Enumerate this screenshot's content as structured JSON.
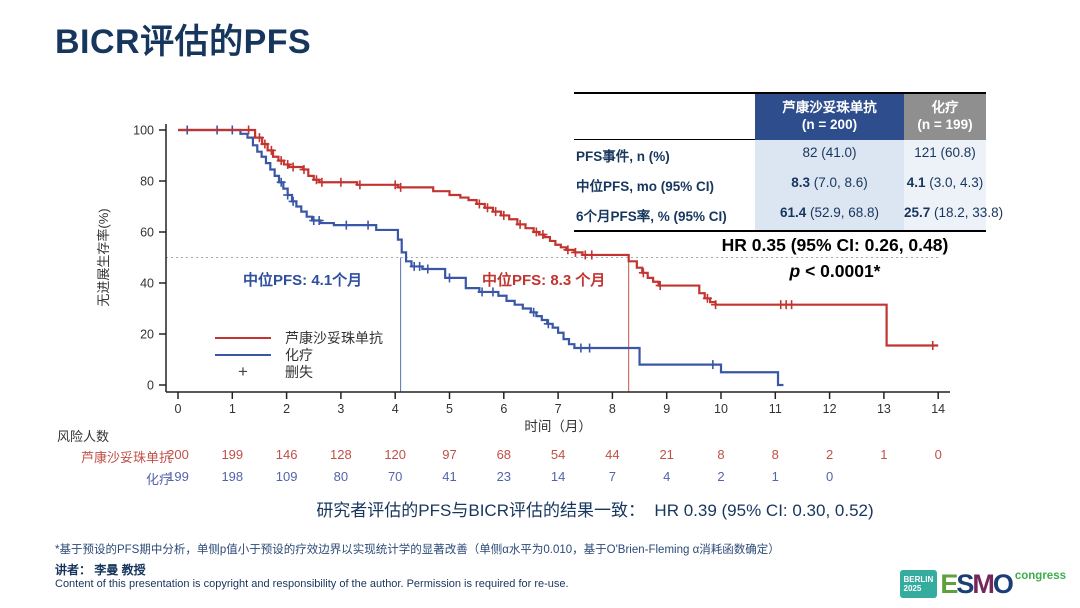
{
  "slide": {
    "title": "BICR评估的PFS",
    "conclusion": "研究者评估的PFS与BICR评估的结果一致：  HR 0.39 (95% CI: 0.30, 0.52)",
    "footnote": "*基于预设的PFS期中分析，单侧p值小于预设的疗效边界以实现统计学的显著改善（单侧α水平为0.010，基于O'Brien-Fleming α消耗函数确定）",
    "speaker": "讲者： 李曼 教授",
    "copyright": "Content of this presentation is copyright and responsibility of the author. Permission is required for re-use."
  },
  "logo": {
    "badge_line1": "BERLIN",
    "badge_line2": "2025",
    "letters": [
      {
        "ch": "E",
        "color": "#5FA13C"
      },
      {
        "ch": "S",
        "color": "#1C3E77"
      },
      {
        "ch": "M",
        "color": "#73275A"
      },
      {
        "ch": "O",
        "color": "#1C3E77"
      }
    ],
    "suffix": "congress"
  },
  "stats_table": {
    "col1": {
      "name": "芦康沙妥珠单抗",
      "n": "(n = 200)"
    },
    "col2": {
      "name": "化疗",
      "n": "(n = 199)"
    },
    "rows": [
      {
        "label": "PFS事件, n (%)",
        "arm1_lead": "",
        "arm1_rest": "82 (41.0)",
        "arm2_lead": "",
        "arm2_rest": "121 (60.8)"
      },
      {
        "label": "中位PFS, mo (95% CI)",
        "arm1_lead": "8.3",
        "arm1_rest": " (7.0, 8.6)",
        "arm2_lead": "4.1",
        "arm2_rest": " (3.0, 4.3)"
      },
      {
        "label": "6个月PFS率, % (95% CI)",
        "arm1_lead": "61.4",
        "arm1_rest": " (52.9, 68.8)",
        "arm2_lead": "25.7",
        "arm2_rest": " (18.2, 33.8)"
      }
    ]
  },
  "hr_block": {
    "line1": "HR 0.35 (95% CI: 0.26, 0.48)",
    "line2_p": "p",
    "line2_rest": " < 0.0001*"
  },
  "annotations": {
    "median_blue": "中位PFS: 4.1个月",
    "median_red": "中位PFS: 8.3 个月"
  },
  "legend": [
    {
      "label": "芦康沙妥珠单抗",
      "color": "#C23430",
      "type": "line"
    },
    {
      "label": "化疗",
      "color": "#3A57A7",
      "type": "line"
    },
    {
      "label": "删失",
      "color": "#444444",
      "type": "plus"
    }
  ],
  "risk_table": {
    "heading": "风险人数",
    "rows": [
      {
        "label": "芦康沙妥珠单抗",
        "color": "#C05048",
        "values": [
          200,
          199,
          146,
          128,
          120,
          97,
          68,
          54,
          44,
          21,
          8,
          8,
          2,
          1,
          0
        ]
      },
      {
        "label": "化疗",
        "color": "#5364AB",
        "values": [
          199,
          198,
          109,
          80,
          70,
          41,
          23,
          14,
          7,
          4,
          2,
          1,
          0
        ]
      }
    ]
  },
  "chart_data": {
    "type": "line",
    "subtype": "kaplan-meier",
    "title": "BICR评估的PFS",
    "xlabel": "时间（月）",
    "ylabel": "无进展生存率(%)",
    "xlim": [
      0,
      14
    ],
    "ylim": [
      0,
      100
    ],
    "x_ticks": [
      0,
      1,
      2,
      3,
      4,
      5,
      6,
      7,
      8,
      9,
      10,
      11,
      12,
      13,
      14
    ],
    "y_ticks": [
      0,
      20,
      40,
      60,
      80,
      100
    ],
    "grid": false,
    "reference_line_pct": 50,
    "medians": [
      {
        "month": 4.1,
        "color": "#3A57A7"
      },
      {
        "month": 8.3,
        "color": "#C23430"
      }
    ],
    "series": [
      {
        "name": "芦康沙妥珠单抗",
        "color": "#C23430",
        "median_pfs": 8.3,
        "steps": [
          [
            1.42,
            97
          ],
          [
            1.55,
            94.5
          ],
          [
            1.65,
            92
          ],
          [
            1.75,
            89.5
          ],
          [
            1.85,
            88
          ],
          [
            1.95,
            86.5
          ],
          [
            2.05,
            85.5
          ],
          [
            2.3,
            84.5
          ],
          [
            2.4,
            82
          ],
          [
            2.5,
            80.5
          ],
          [
            2.6,
            79.5
          ],
          [
            3.3,
            78.5
          ],
          [
            4.05,
            77.5
          ],
          [
            4.7,
            76
          ],
          [
            5.0,
            74.5
          ],
          [
            5.2,
            73.5
          ],
          [
            5.35,
            72.5
          ],
          [
            5.5,
            71
          ],
          [
            5.65,
            69.5
          ],
          [
            5.8,
            68
          ],
          [
            5.95,
            66.5
          ],
          [
            6.1,
            65
          ],
          [
            6.25,
            63
          ],
          [
            6.4,
            61.5
          ],
          [
            6.55,
            60
          ],
          [
            6.65,
            59
          ],
          [
            6.75,
            58
          ],
          [
            6.85,
            56.5
          ],
          [
            6.95,
            55
          ],
          [
            7.05,
            54
          ],
          [
            7.15,
            53
          ],
          [
            7.3,
            52
          ],
          [
            7.45,
            51
          ],
          [
            8.3,
            48.5
          ],
          [
            8.45,
            46
          ],
          [
            8.55,
            44
          ],
          [
            8.65,
            42
          ],
          [
            8.75,
            40.5
          ],
          [
            8.85,
            39
          ],
          [
            9.6,
            36
          ],
          [
            9.7,
            34
          ],
          [
            9.8,
            32.5
          ],
          [
            9.9,
            31.5
          ],
          [
            13.05,
            15.5
          ]
        ],
        "end_month": 14.0,
        "censors": [
          1.3,
          1.5,
          1.6,
          1.72,
          1.9,
          2.02,
          2.12,
          2.32,
          2.55,
          2.65,
          3.0,
          3.35,
          4.0,
          4.1,
          5.55,
          5.7,
          5.85,
          6.0,
          6.3,
          6.6,
          6.72,
          7.18,
          7.32,
          7.5,
          7.62,
          8.57,
          8.88,
          9.75,
          9.9,
          11.1,
          11.2,
          11.3,
          13.9
        ]
      },
      {
        "name": "化疗",
        "color": "#3A57A7",
        "median_pfs": 4.1,
        "steps": [
          [
            1.15,
            98.5
          ],
          [
            1.28,
            97
          ],
          [
            1.38,
            94
          ],
          [
            1.46,
            91.5
          ],
          [
            1.54,
            89.5
          ],
          [
            1.62,
            87
          ],
          [
            1.7,
            84.5
          ],
          [
            1.78,
            82
          ],
          [
            1.86,
            79.5
          ],
          [
            1.94,
            77
          ],
          [
            2.02,
            74.5
          ],
          [
            2.1,
            72
          ],
          [
            2.18,
            70
          ],
          [
            2.27,
            68
          ],
          [
            2.37,
            66
          ],
          [
            2.47,
            64.5
          ],
          [
            2.62,
            63.5
          ],
          [
            2.87,
            62.7
          ],
          [
            3.65,
            60.8
          ],
          [
            4.05,
            57
          ],
          [
            4.12,
            52
          ],
          [
            4.2,
            48.5
          ],
          [
            4.3,
            46.5
          ],
          [
            4.5,
            45.5
          ],
          [
            4.92,
            42
          ],
          [
            5.3,
            38
          ],
          [
            5.55,
            36.5
          ],
          [
            5.9,
            35
          ],
          [
            6.05,
            33
          ],
          [
            6.2,
            31.5
          ],
          [
            6.35,
            30
          ],
          [
            6.5,
            28.5
          ],
          [
            6.6,
            27
          ],
          [
            6.7,
            25.5
          ],
          [
            6.8,
            24
          ],
          [
            6.9,
            22.5
          ],
          [
            7.0,
            20.5
          ],
          [
            7.1,
            18
          ],
          [
            7.2,
            16
          ],
          [
            7.3,
            14.5
          ],
          [
            8.5,
            8
          ],
          [
            10.0,
            5
          ],
          [
            11.05,
            0
          ]
        ],
        "end_month": 11.15,
        "censors": [
          0.17,
          0.72,
          1.0,
          1.9,
          2.02,
          2.12,
          2.5,
          2.6,
          3.1,
          3.5,
          4.35,
          4.45,
          4.6,
          5.0,
          5.6,
          5.8,
          6.55,
          6.82,
          7.42,
          7.58,
          9.85
        ]
      }
    ]
  }
}
